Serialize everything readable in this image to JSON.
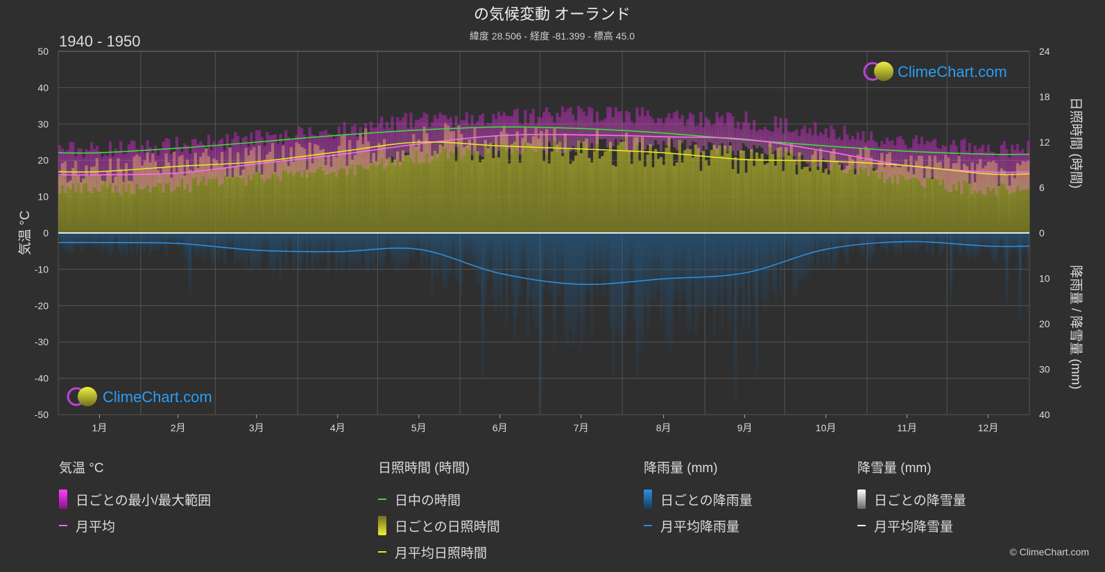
{
  "header": {
    "title": "の気候変動 オーランド",
    "subtitle": "緯度 28.506 - 経度 -81.399 - 標高 45.0",
    "period": "1940 - 1950"
  },
  "colors": {
    "background": "#2f2f2f",
    "daylight": "#3fdc3f",
    "sunshine_monthly": "#e8e82a",
    "temp_monthly": "#ff6cf0",
    "rain_monthly": "#2a8fe0",
    "temp_range": "#d020d0",
    "sunshine_bar": "#8f8f2a",
    "rain_bar": "#1f5e8f"
  },
  "watermark": {
    "text": "ClimeChart.com"
  },
  "chart_data": {
    "type": "line",
    "months": [
      "1月",
      "2月",
      "3月",
      "4月",
      "5月",
      "6月",
      "7月",
      "8月",
      "9月",
      "10月",
      "11月",
      "12月"
    ],
    "axes": {
      "left": {
        "label": "気温 °C",
        "ticks": [
          50,
          40,
          30,
          20,
          10,
          0,
          -10,
          -20,
          -30,
          -40,
          -50
        ],
        "range": [
          -50,
          50
        ]
      },
      "right_top": {
        "label": "日照時間 (時間)",
        "ticks": [
          24,
          18,
          12,
          6,
          0
        ],
        "range": [
          0,
          24
        ]
      },
      "right_bottom": {
        "label": "降雨量 / 降雪量 (mm)",
        "ticks": [
          10,
          20,
          30,
          40
        ],
        "range": [
          0,
          40
        ]
      }
    },
    "series": [
      {
        "name": "日中の時間",
        "axis": "right_top",
        "values": [
          10.6,
          11.2,
          12.0,
          12.9,
          13.6,
          14.0,
          13.8,
          13.2,
          12.3,
          11.5,
          10.8,
          10.4
        ]
      },
      {
        "name": "月平均日照時間",
        "axis": "right_top",
        "values": [
          8.1,
          8.8,
          9.4,
          10.7,
          12.0,
          11.5,
          11.1,
          10.6,
          9.7,
          9.5,
          8.9,
          7.8
        ]
      },
      {
        "name": "月平均",
        "axis": "left",
        "values": [
          16.0,
          16.5,
          19.0,
          21.5,
          24.5,
          26.8,
          27.0,
          26.5,
          25.8,
          22.5,
          18.5,
          16.8
        ]
      },
      {
        "name": "月平均降雨量",
        "axis": "right_bottom",
        "values": [
          2.1,
          2.3,
          3.8,
          4.1,
          3.6,
          8.9,
          11.3,
          10.1,
          8.8,
          3.6,
          1.9,
          2.9
        ]
      }
    ],
    "daily_temp_range_monthly": {
      "min": [
        12,
        13,
        15,
        17,
        21,
        23,
        24,
        24,
        23,
        19,
        14,
        12
      ],
      "max": [
        23,
        24,
        26,
        28,
        31,
        32,
        33,
        32,
        31,
        28,
        25,
        23
      ]
    },
    "grid": true
  },
  "legend": {
    "groups": [
      {
        "title": "気温 °C",
        "items": [
          "日ごとの最小/最大範囲",
          "月平均"
        ]
      },
      {
        "title": "日照時間 (時間)",
        "items": [
          "日中の時間",
          "日ごとの日照時間",
          "月平均日照時間"
        ]
      },
      {
        "title": "降雨量 (mm)",
        "items": [
          "日ごとの降雨量",
          "月平均降雨量"
        ]
      },
      {
        "title": "降雪量 (mm)",
        "items": [
          "日ごとの降雪量",
          "月平均降雪量"
        ]
      }
    ]
  },
  "footer": {
    "copyright": "© ClimeChart.com"
  }
}
